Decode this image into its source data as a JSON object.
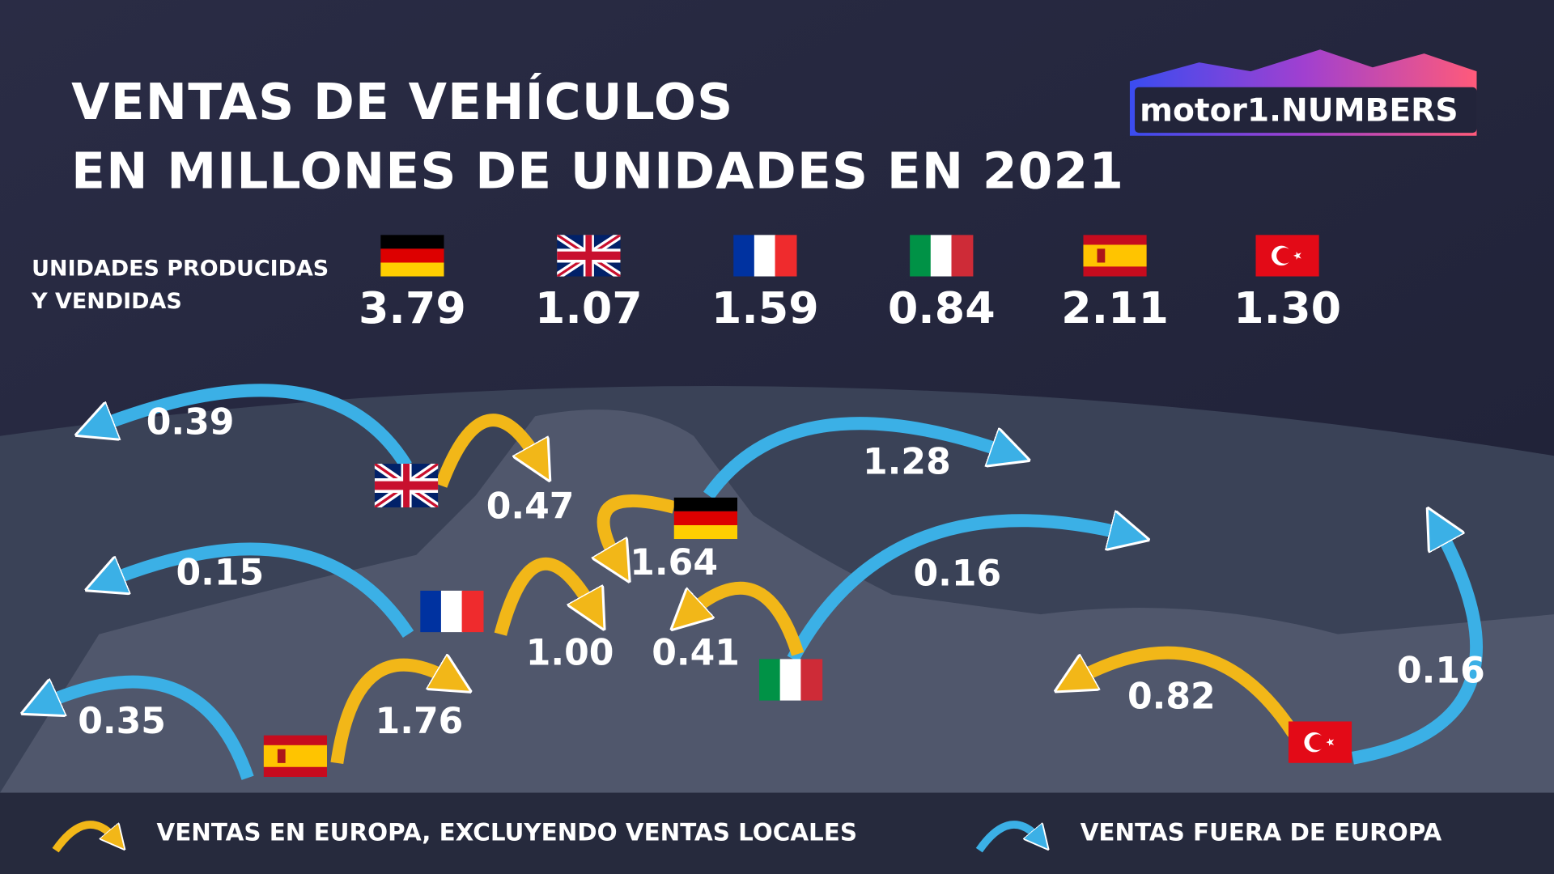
{
  "title": {
    "line1": "VENTAS DE VEHÍCULOS",
    "line2": "EN MILLONES DE UNIDADES EN 2021"
  },
  "logo": {
    "text": "motor1.NUMBERS"
  },
  "produced_label": {
    "line1": "UNIDADES PRODUCIDAS",
    "line2": "Y VENDIDAS"
  },
  "legend": {
    "europe": "VENTAS EN EUROPA, EXCLUYENDO VENTAS LOCALES",
    "outside": "VENTAS FUERA DE EUROPA"
  },
  "colors": {
    "europe_arrow": "#f2b718",
    "outside_arrow": "#3bb0e6",
    "background": "#22243a"
  },
  "chart_data": {
    "type": "table",
    "columns": [
      "country",
      "produced_and_sold",
      "sales_europe_excl_local",
      "sales_outside_europe"
    ],
    "rows": [
      {
        "country": "Germany",
        "flag": "de",
        "total": "3.79",
        "europe": "1.64",
        "outside": "1.28"
      },
      {
        "country": "United Kingdom",
        "flag": "gb",
        "total": "1.07",
        "europe": "0.47",
        "outside": "0.39"
      },
      {
        "country": "France",
        "flag": "fr",
        "total": "1.59",
        "europe": "1.00",
        "outside": "0.15"
      },
      {
        "country": "Italy",
        "flag": "it",
        "total": "0.84",
        "europe": "0.41",
        "outside": "0.16"
      },
      {
        "country": "Spain",
        "flag": "es",
        "total": "2.11",
        "europe": "1.76",
        "outside": "0.35"
      },
      {
        "country": "Turkey",
        "flag": "tr",
        "total": "1.30",
        "europe": "0.82",
        "outside": "0.16"
      }
    ]
  }
}
